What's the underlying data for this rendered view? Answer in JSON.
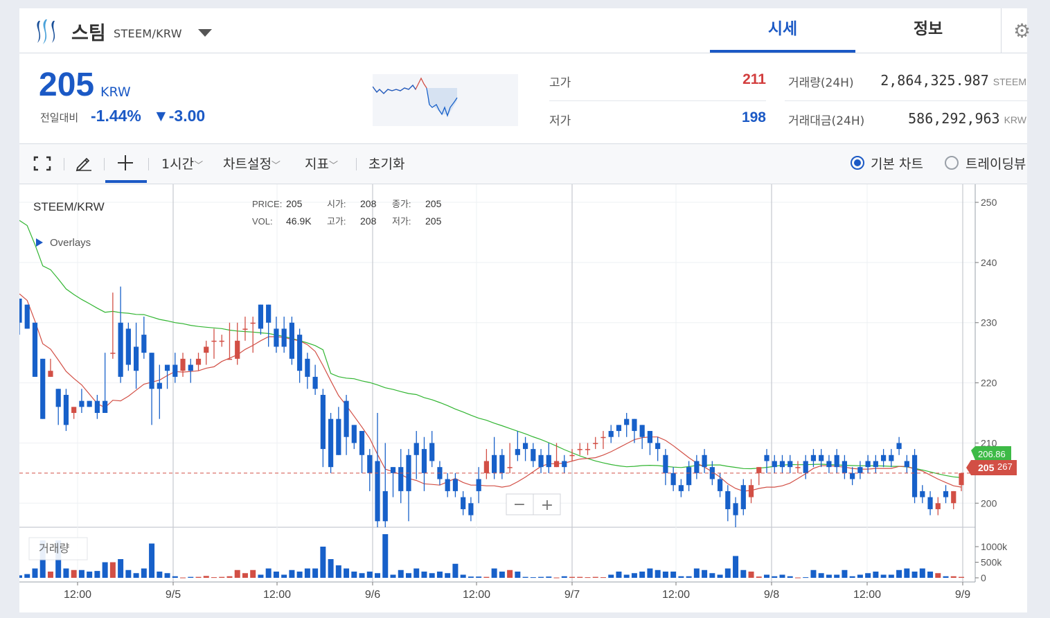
{
  "header": {
    "coin_name": "스팀",
    "pair": "STEEM/KRW",
    "tabs": [
      {
        "label": "시세",
        "active": true
      },
      {
        "label": "정보",
        "active": false
      }
    ],
    "settings_icon": "gear-icon"
  },
  "summary": {
    "price": "205",
    "price_unit": "KRW",
    "change_label": "전일대비",
    "change_pct": "-1.44%",
    "change_abs": "▼-3.00",
    "high_label": "고가",
    "high_value": "211",
    "low_label": "저가",
    "low_value": "198",
    "volume_label": "거래량(24H)",
    "volume_value": "2,864,325.987",
    "volume_unit": "STEEM",
    "amount_label": "거래대금(24H)",
    "amount_value": "586,292,963",
    "amount_unit": "KRW"
  },
  "toolbar": {
    "interval": "1시간",
    "chart_settings": "차트설정",
    "indicators": "지표",
    "reset": "초기화",
    "basic_chart": "기본 차트",
    "tradingview": "트레이딩뷰",
    "icons": [
      "fullscreen-icon",
      "pencil-icon",
      "crosshair-icon"
    ],
    "accent_color": "#1b59c5"
  },
  "chart": {
    "symbol": "STEEM/KRW",
    "overlays_label": "Overlays",
    "volume_label": "거래량",
    "info": {
      "price_label": "PRICE:",
      "price": "205",
      "open_label": "시가:",
      "open": "208",
      "close_label": "종가:",
      "close": "205",
      "vol_label": "VOL:",
      "vol": "46.9K",
      "high_label": "고가:",
      "high": "208",
      "low_label": "저가:",
      "low": "205"
    },
    "price_ticks": [
      "250",
      "240",
      "230",
      "220",
      "210",
      "200"
    ],
    "volume_ticks": [
      "1000k",
      "500k",
      "0"
    ],
    "x_ticks": [
      "12:00",
      "9/5",
      "12:00",
      "9/6",
      "12:00",
      "9/7",
      "12:00",
      "9/8",
      "12:00",
      "9/9"
    ],
    "ma_green_value": "206.86",
    "current_price_tag": "205",
    "current_price_tag_suffix": "267",
    "zoom_out": "−",
    "zoom_in": "+",
    "up_color": "#d24f45",
    "down_color": "#1760c9",
    "ma_short_color": "#d24f45",
    "ma_long_color": "#31b531"
  },
  "chart_data": {
    "type": "candlestick",
    "title": "STEEM/KRW",
    "y_range": [
      196,
      253
    ],
    "candles": [
      [
        234,
        234,
        230,
        228
      ],
      [
        233,
        233,
        229,
        230
      ],
      [
        230,
        230,
        221,
        221
      ],
      [
        224,
        224,
        214,
        215
      ],
      [
        221,
        224,
        222,
        221
      ],
      [
        219,
        219,
        216,
        213
      ],
      [
        218,
        219,
        213,
        212
      ],
      [
        215,
        215,
        216,
        214
      ],
      [
        217,
        219,
        216,
        215
      ],
      [
        217,
        217,
        216,
        218
      ],
      [
        217,
        218,
        215,
        214
      ],
      [
        217,
        225,
        215,
        216
      ],
      [
        225,
        235,
        225,
        224
      ],
      [
        230,
        236,
        221,
        220
      ],
      [
        229,
        230,
        223,
        222
      ],
      [
        226,
        230,
        222,
        219
      ],
      [
        228,
        231,
        225,
        224
      ],
      [
        225,
        225,
        219,
        213
      ],
      [
        220,
        223,
        219,
        214
      ],
      [
        223,
        223,
        222,
        219
      ],
      [
        223,
        225,
        221,
        220
      ],
      [
        222,
        225,
        224,
        221
      ],
      [
        223,
        224,
        222,
        220
      ],
      [
        223,
        225,
        224,
        222
      ],
      [
        225,
        227,
        226,
        223
      ],
      [
        227,
        229,
        227,
        224
      ],
      [
        227,
        228,
        227,
        226
      ],
      [
        224,
        230,
        224,
        224
      ],
      [
        224,
        230,
        227,
        223
      ],
      [
        229,
        231,
        229,
        227
      ],
      [
        230,
        231,
        230,
        225
      ],
      [
        233,
        233,
        229,
        228
      ],
      [
        233,
        233,
        230,
        226
      ],
      [
        229,
        231,
        226,
        225
      ],
      [
        229,
        231,
        226,
        225
      ],
      [
        230,
        231,
        224,
        223
      ],
      [
        228,
        229,
        222,
        220
      ],
      [
        224,
        225,
        221,
        219
      ],
      [
        221,
        223,
        219,
        218
      ],
      [
        218,
        219,
        209,
        206
      ],
      [
        214,
        215,
        206,
        205
      ],
      [
        214,
        216,
        208,
        208
      ],
      [
        217,
        218,
        211,
        208
      ],
      [
        213,
        213,
        210,
        209
      ],
      [
        212,
        212,
        208,
        205
      ],
      [
        208,
        209,
        205,
        202
      ],
      [
        207,
        215,
        197,
        196
      ],
      [
        202,
        210,
        197,
        196
      ],
      [
        206,
        205,
        205,
        201
      ],
      [
        206,
        209,
        202,
        200
      ],
      [
        208,
        209,
        202,
        197
      ],
      [
        210,
        212,
        208,
        204
      ],
      [
        209,
        211,
        205,
        202
      ],
      [
        210,
        212,
        207,
        206
      ],
      [
        206,
        207,
        204,
        203
      ],
      [
        204,
        205,
        202,
        201
      ],
      [
        204,
        205,
        202,
        201
      ],
      [
        201,
        202,
        199,
        198
      ],
      [
        200,
        201,
        198,
        197
      ],
      [
        204,
        206,
        202,
        200
      ],
      [
        205,
        209,
        207,
        204
      ],
      [
        208,
        211,
        205,
        204
      ],
      [
        208,
        209,
        205,
        204
      ],
      [
        206,
        210,
        206,
        205
      ],
      [
        209,
        212,
        208,
        207
      ],
      [
        210,
        211,
        209,
        207
      ],
      [
        209,
        210,
        207,
        206
      ],
      [
        208,
        209,
        206,
        205
      ],
      [
        208,
        210,
        206,
        205
      ],
      [
        206,
        210,
        207,
        206
      ],
      [
        207,
        208,
        206,
        205
      ],
      [
        208,
        209,
        208,
        207
      ],
      [
        209,
        210,
        209,
        208
      ],
      [
        209,
        210,
        209,
        208
      ],
      [
        210,
        211,
        210,
        209
      ],
      [
        211,
        212,
        211,
        209
      ],
      [
        212,
        213,
        211,
        210
      ],
      [
        213,
        213,
        212,
        211
      ],
      [
        214,
        215,
        213,
        211
      ],
      [
        214,
        214,
        212,
        210
      ],
      [
        213,
        213,
        211,
        209
      ],
      [
        212,
        212,
        210,
        208
      ],
      [
        210,
        211,
        209,
        207
      ],
      [
        208,
        209,
        205,
        203
      ],
      [
        205,
        206,
        203,
        202
      ],
      [
        203,
        204,
        202,
        201
      ],
      [
        206,
        207,
        203,
        202
      ],
      [
        207,
        208,
        205,
        204
      ],
      [
        208,
        209,
        206,
        205
      ],
      [
        206,
        207,
        204,
        203
      ],
      [
        204,
        205,
        202,
        201
      ],
      [
        202,
        203,
        199,
        197
      ],
      [
        200,
        201,
        198,
        196
      ],
      [
        203,
        204,
        199,
        198
      ],
      [
        201,
        204,
        203,
        200
      ],
      [
        205,
        206,
        206,
        203
      ],
      [
        208,
        209,
        207,
        205
      ],
      [
        207,
        208,
        206,
        205
      ],
      [
        207,
        208,
        206,
        205
      ],
      [
        207,
        208,
        206,
        205
      ],
      [
        206,
        207,
        206,
        205
      ],
      [
        207,
        208,
        205,
        204
      ],
      [
        208,
        209,
        207,
        206
      ],
      [
        208,
        209,
        207,
        206
      ],
      [
        207,
        208,
        206,
        205
      ],
      [
        208,
        209,
        206,
        205
      ],
      [
        207,
        208,
        205,
        204
      ],
      [
        205,
        206,
        204,
        203
      ],
      [
        206,
        207,
        205,
        204
      ],
      [
        207,
        208,
        206,
        205
      ],
      [
        207,
        208,
        206,
        205
      ],
      [
        208,
        209,
        207,
        206
      ],
      [
        208,
        209,
        207,
        206
      ],
      [
        210,
        211,
        209,
        208
      ],
      [
        207,
        208,
        206,
        205
      ],
      [
        208,
        209,
        201,
        200
      ],
      [
        202,
        203,
        201,
        200
      ],
      [
        201,
        202,
        199,
        198
      ],
      [
        199,
        201,
        200,
        198
      ],
      [
        202,
        203,
        201,
        200
      ],
      [
        200,
        201,
        202,
        199
      ],
      [
        203,
        204,
        205,
        202
      ]
    ],
    "volume_range": [
      0,
      1400
    ],
    "volume": [
      80,
      120,
      300,
      1200,
      200,
      1200,
      300,
      250,
      250,
      200,
      220,
      500,
      500,
      600,
      250,
      150,
      300,
      1100,
      200,
      150,
      50,
      10,
      30,
      30,
      60,
      20,
      30,
      50,
      250,
      150,
      250,
      100,
      300,
      200,
      100,
      250,
      200,
      300,
      300,
      1000,
      600,
      400,
      300,
      200,
      150,
      200,
      150,
      1400,
      100,
      250,
      150,
      300,
      200,
      150,
      200,
      150,
      450,
      100,
      40,
      40,
      30,
      300,
      200,
      250,
      200,
      30,
      20,
      30,
      40,
      10,
      50,
      30,
      30,
      20,
      30,
      20,
      100,
      200,
      100,
      150,
      200,
      300,
      250,
      200,
      200,
      50,
      50,
      300,
      250,
      150,
      100,
      300,
      700,
      250,
      200,
      40,
      100,
      50,
      100,
      50,
      10,
      20,
      250,
      150,
      100,
      100,
      250,
      50,
      100,
      150,
      200,
      100,
      100,
      250,
      300,
      200,
      300,
      200,
      150,
      50,
      50,
      30
    ],
    "volume_label": "거래량",
    "x_labels": [
      "12:00",
      "9/5",
      "12:00",
      "9/6",
      "12:00",
      "9/7",
      "12:00",
      "9/8",
      "12:00",
      "9/9"
    ],
    "series": [
      {
        "name": "MA short",
        "color": "#d24f45"
      },
      {
        "name": "MA long",
        "color": "#31b531",
        "last": 206.86
      }
    ],
    "current_price": 205
  }
}
